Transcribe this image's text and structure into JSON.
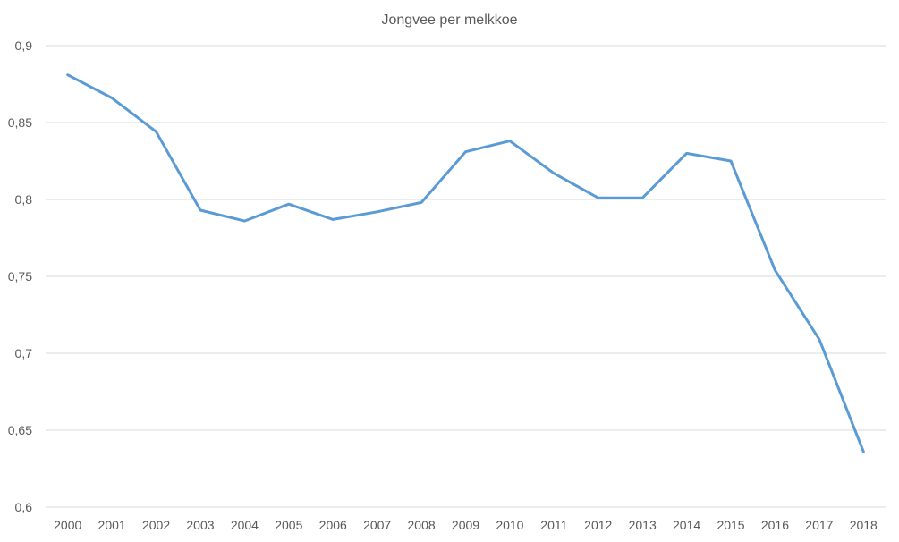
{
  "chart_data": {
    "type": "line",
    "title": "Jongvee per melkkoe",
    "xlabel": "",
    "ylabel": "",
    "categories": [
      "2000",
      "2001",
      "2002",
      "2003",
      "2004",
      "2005",
      "2006",
      "2007",
      "2008",
      "2009",
      "2010",
      "2011",
      "2012",
      "2013",
      "2014",
      "2015",
      "2016",
      "2017",
      "2018"
    ],
    "series": [
      {
        "values": [
          0.881,
          0.866,
          0.844,
          0.793,
          0.786,
          0.797,
          0.787,
          0.792,
          0.798,
          0.831,
          0.838,
          0.817,
          0.801,
          0.801,
          0.83,
          0.825,
          0.754,
          0.709,
          0.636
        ],
        "color": "#5b9bd5"
      }
    ],
    "ylim": [
      0.6,
      0.9
    ],
    "yticks": [
      0.6,
      0.65,
      0.7,
      0.75,
      0.8,
      0.85,
      0.9
    ],
    "ytick_labels": [
      "0,6",
      "0,65",
      "0,7",
      "0,75",
      "0,8",
      "0,85",
      "0,9"
    ],
    "grid": true,
    "legend": "none"
  }
}
